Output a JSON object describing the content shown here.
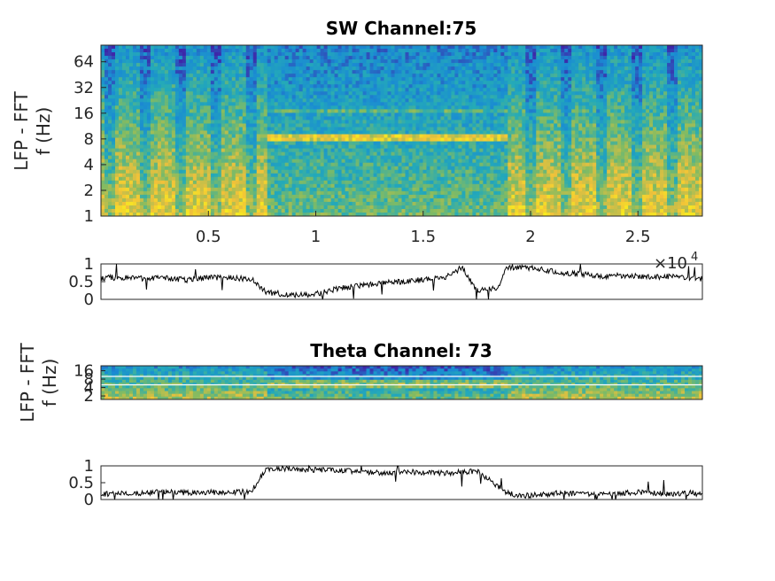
{
  "chart_data": [
    {
      "type": "heatmap",
      "title": "SW Channel:75",
      "ylabel_line1": "LFP - FFT",
      "ylabel_line2": "f (Hz)",
      "y_scale": "log2",
      "ylim": [
        1,
        100
      ],
      "y_ticks": [
        1,
        2,
        4,
        8,
        16,
        32,
        64
      ],
      "y_tick_labels": [
        "1",
        "2",
        "4",
        "8",
        "16",
        "32",
        "64"
      ],
      "xlim": [
        0,
        28000
      ],
      "x_ticks": [
        5000,
        10000,
        15000,
        20000,
        25000
      ],
      "x_tick_labels": [
        "0.5",
        "1",
        "1.5",
        "2",
        "2.5"
      ],
      "x_multiplier_base": "×10",
      "x_multiplier_exp": "4",
      "colormap": "parula",
      "colors": [
        "#3e26a8",
        "#1a8bd3",
        "#24aab8",
        "#82bb62",
        "#f1c13a",
        "#f9fb15"
      ],
      "profile_note": "high power at low frequencies during 0–7700, 18900–28000; theta band (~8 Hz) with ~16 Hz harmonic during 7700–18900"
    },
    {
      "type": "line",
      "title": "",
      "ylim": [
        0,
        1
      ],
      "y_ticks": [
        0,
        0.5,
        1
      ],
      "y_tick_labels": [
        "0",
        "0.5",
        "1"
      ],
      "xlim": [
        0,
        28000
      ],
      "x": [
        0,
        1000,
        2000,
        3000,
        4000,
        5000,
        6000,
        7000,
        7700,
        9000,
        10000,
        11000,
        12000,
        13000,
        14000,
        15000,
        16000,
        16800,
        17500,
        18500,
        18900,
        19500,
        20500,
        21500,
        22500,
        23500,
        24500,
        25500,
        26500,
        27500,
        28000
      ],
      "values": [
        0.6,
        0.62,
        0.58,
        0.6,
        0.55,
        0.62,
        0.6,
        0.58,
        0.2,
        0.12,
        0.15,
        0.3,
        0.38,
        0.45,
        0.5,
        0.55,
        0.6,
        0.9,
        0.25,
        0.3,
        0.9,
        0.92,
        0.85,
        0.75,
        0.7,
        0.65,
        0.68,
        0.62,
        0.65,
        0.6,
        0.58
      ]
    },
    {
      "type": "heatmap",
      "title": "Theta Channel: 73",
      "ylabel_line1": "LFP - FFT",
      "ylabel_line2": "f (Hz)",
      "y_scale": "log2",
      "ylim": [
        1.5,
        24
      ],
      "y_ticks": [
        2,
        4,
        8,
        16
      ],
      "y_tick_labels": [
        "2",
        "4",
        "8",
        "16"
      ],
      "xlim": [
        0,
        28000
      ],
      "guide_lines_hz": [
        5,
        10
      ],
      "colormap": "parula"
    },
    {
      "type": "line",
      "title": "",
      "ylim": [
        0,
        1
      ],
      "y_ticks": [
        0,
        0.5,
        1
      ],
      "y_tick_labels": [
        "0",
        "0.5",
        "1"
      ],
      "xlim": [
        0,
        28000
      ],
      "x": [
        0,
        1000,
        2000,
        3000,
        4000,
        5000,
        6000,
        7000,
        7700,
        8500,
        10000,
        11500,
        13000,
        14500,
        16000,
        17500,
        18900,
        19500,
        20500,
        21500,
        22500,
        23500,
        24500,
        25500,
        26500,
        27500,
        28000
      ],
      "values": [
        0.15,
        0.2,
        0.18,
        0.25,
        0.2,
        0.22,
        0.2,
        0.25,
        0.9,
        0.92,
        0.88,
        0.85,
        0.8,
        0.82,
        0.78,
        0.85,
        0.2,
        0.1,
        0.15,
        0.2,
        0.15,
        0.18,
        0.2,
        0.22,
        0.15,
        0.2,
        0.15
      ]
    }
  ]
}
